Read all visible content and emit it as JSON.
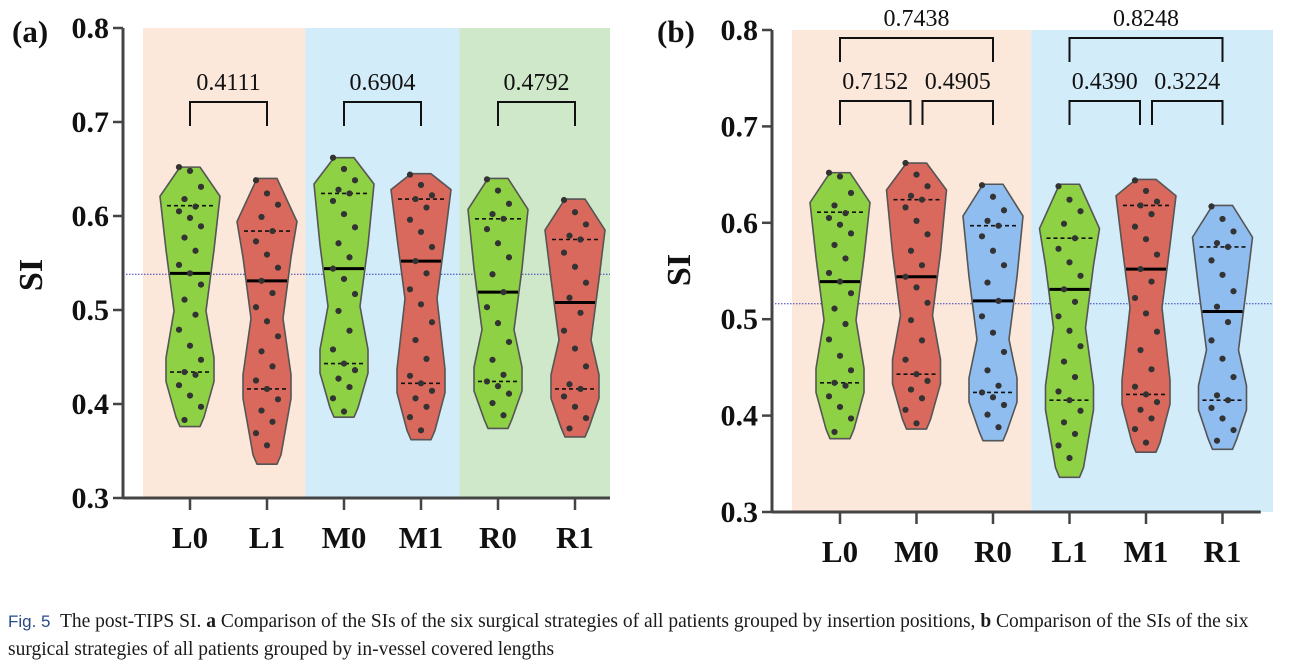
{
  "chart_data": [
    {
      "type": "violin",
      "panel_label": "(a)",
      "ylabel": "SI",
      "ylim": [
        0.3,
        0.8
      ],
      "yticks": [
        0.3,
        0.4,
        0.5,
        0.6,
        0.7,
        0.8
      ],
      "ytick_labels": [
        "0.3",
        "0.4",
        "0.5",
        "0.6",
        "0.7",
        "0.8"
      ],
      "reference_line": 0.538,
      "categories": [
        "L0",
        "L1",
        "M0",
        "M1",
        "R0",
        "R1"
      ],
      "backgrounds": [
        {
          "from": 0,
          "to": 1,
          "color": "#fce8da"
        },
        {
          "from": 2,
          "to": 3,
          "color": "#d2ecfa"
        },
        {
          "from": 4,
          "to": 5,
          "color": "#cfe8c9"
        }
      ],
      "series": [
        {
          "category": "L0",
          "color": "#8ed145",
          "min": 0.376,
          "max": 0.652,
          "median": 0.539,
          "q1": 0.434,
          "q3": 0.611,
          "points": [
            0.652,
            0.648,
            0.631,
            0.618,
            0.61,
            0.605,
            0.598,
            0.589,
            0.577,
            0.563,
            0.548,
            0.539,
            0.527,
            0.511,
            0.495,
            0.479,
            0.462,
            0.447,
            0.434,
            0.431,
            0.42,
            0.409,
            0.397,
            0.383
          ]
        },
        {
          "category": "L1",
          "color": "#d9695c",
          "min": 0.336,
          "max": 0.64,
          "median": 0.531,
          "q1": 0.416,
          "q3": 0.584,
          "points": [
            0.638,
            0.624,
            0.612,
            0.599,
            0.584,
            0.573,
            0.559,
            0.545,
            0.531,
            0.518,
            0.503,
            0.488,
            0.472,
            0.456,
            0.44,
            0.425,
            0.416,
            0.405,
            0.393,
            0.381,
            0.369,
            0.356
          ]
        },
        {
          "category": "M0",
          "color": "#8ed145",
          "min": 0.386,
          "max": 0.662,
          "median": 0.544,
          "q1": 0.443,
          "q3": 0.624,
          "points": [
            0.662,
            0.65,
            0.638,
            0.628,
            0.624,
            0.616,
            0.602,
            0.588,
            0.571,
            0.556,
            0.544,
            0.533,
            0.517,
            0.499,
            0.478,
            0.458,
            0.443,
            0.436,
            0.427,
            0.418,
            0.406,
            0.392
          ]
        },
        {
          "category": "M1",
          "color": "#d9695c",
          "min": 0.362,
          "max": 0.645,
          "median": 0.552,
          "q1": 0.422,
          "q3": 0.618,
          "points": [
            0.644,
            0.633,
            0.622,
            0.618,
            0.609,
            0.596,
            0.583,
            0.567,
            0.552,
            0.539,
            0.522,
            0.506,
            0.487,
            0.468,
            0.448,
            0.43,
            0.422,
            0.414,
            0.406,
            0.397,
            0.386,
            0.372
          ]
        },
        {
          "category": "R0",
          "color": "#8ed145",
          "min": 0.374,
          "max": 0.64,
          "median": 0.519,
          "q1": 0.424,
          "q3": 0.597,
          "points": [
            0.639,
            0.627,
            0.613,
            0.602,
            0.597,
            0.586,
            0.571,
            0.556,
            0.538,
            0.519,
            0.503,
            0.486,
            0.466,
            0.447,
            0.431,
            0.424,
            0.419,
            0.411,
            0.401,
            0.388
          ]
        },
        {
          "category": "R1",
          "color": "#d9695c",
          "min": 0.365,
          "max": 0.618,
          "median": 0.508,
          "q1": 0.416,
          "q3": 0.575,
          "points": [
            0.617,
            0.604,
            0.591,
            0.579,
            0.575,
            0.561,
            0.546,
            0.529,
            0.513,
            0.497,
            0.478,
            0.459,
            0.44,
            0.421,
            0.416,
            0.408,
            0.397,
            0.385,
            0.374
          ]
        }
      ],
      "comparisons": [
        {
          "from": 0,
          "to": 1,
          "level": 0,
          "p": "0.4111"
        },
        {
          "from": 2,
          "to": 3,
          "level": 0,
          "p": "0.6904"
        },
        {
          "from": 4,
          "to": 5,
          "level": 0,
          "p": "0.4792"
        }
      ]
    },
    {
      "type": "violin",
      "panel_label": "(b)",
      "ylabel": "SI",
      "ylim": [
        0.3,
        0.8
      ],
      "yticks": [
        0.3,
        0.4,
        0.5,
        0.6,
        0.7,
        0.8
      ],
      "ytick_labels": [
        "0.3",
        "0.4",
        "0.5",
        "0.6",
        "0.7",
        "0.8"
      ],
      "reference_line": 0.516,
      "categories": [
        "L0",
        "M0",
        "R0",
        "L1",
        "M1",
        "R1"
      ],
      "backgrounds": [
        {
          "from": 0,
          "to": 2,
          "color": "#fce8da"
        },
        {
          "from": 3,
          "to": 5,
          "color": "#d2ecfa"
        }
      ],
      "series": [
        {
          "category": "L0",
          "color": "#8ed145",
          "min": 0.376,
          "max": 0.652,
          "median": 0.539,
          "q1": 0.434,
          "q3": 0.611,
          "points": [
            0.652,
            0.648,
            0.631,
            0.618,
            0.61,
            0.605,
            0.598,
            0.589,
            0.577,
            0.563,
            0.548,
            0.539,
            0.527,
            0.511,
            0.495,
            0.479,
            0.462,
            0.447,
            0.434,
            0.431,
            0.42,
            0.409,
            0.397,
            0.383
          ]
        },
        {
          "category": "M0",
          "color": "#d9695c",
          "min": 0.386,
          "max": 0.662,
          "median": 0.544,
          "q1": 0.443,
          "q3": 0.624,
          "points": [
            0.662,
            0.65,
            0.638,
            0.628,
            0.624,
            0.616,
            0.602,
            0.588,
            0.571,
            0.556,
            0.544,
            0.533,
            0.517,
            0.499,
            0.478,
            0.458,
            0.443,
            0.436,
            0.427,
            0.418,
            0.406,
            0.392
          ]
        },
        {
          "category": "R0",
          "color": "#8fbdf0",
          "min": 0.374,
          "max": 0.64,
          "median": 0.519,
          "q1": 0.424,
          "q3": 0.597,
          "points": [
            0.639,
            0.627,
            0.613,
            0.602,
            0.597,
            0.586,
            0.571,
            0.556,
            0.538,
            0.519,
            0.503,
            0.486,
            0.466,
            0.447,
            0.431,
            0.424,
            0.419,
            0.411,
            0.401,
            0.388
          ]
        },
        {
          "category": "L1",
          "color": "#8ed145",
          "min": 0.336,
          "max": 0.64,
          "median": 0.531,
          "q1": 0.416,
          "q3": 0.584,
          "points": [
            0.638,
            0.624,
            0.612,
            0.599,
            0.584,
            0.573,
            0.559,
            0.545,
            0.531,
            0.518,
            0.503,
            0.488,
            0.472,
            0.456,
            0.44,
            0.425,
            0.416,
            0.405,
            0.393,
            0.381,
            0.369,
            0.356
          ]
        },
        {
          "category": "M1",
          "color": "#d9695c",
          "min": 0.362,
          "max": 0.645,
          "median": 0.552,
          "q1": 0.422,
          "q3": 0.618,
          "points": [
            0.644,
            0.633,
            0.622,
            0.618,
            0.609,
            0.596,
            0.583,
            0.567,
            0.552,
            0.539,
            0.522,
            0.506,
            0.487,
            0.468,
            0.448,
            0.43,
            0.422,
            0.414,
            0.406,
            0.397,
            0.386,
            0.372
          ]
        },
        {
          "category": "R1",
          "color": "#8fbdf0",
          "min": 0.365,
          "max": 0.618,
          "median": 0.508,
          "q1": 0.416,
          "q3": 0.575,
          "points": [
            0.617,
            0.604,
            0.591,
            0.579,
            0.575,
            0.561,
            0.546,
            0.529,
            0.513,
            0.497,
            0.478,
            0.459,
            0.44,
            0.421,
            0.416,
            0.408,
            0.397,
            0.385,
            0.374
          ]
        }
      ],
      "comparisons": [
        {
          "from": 0,
          "to": 1,
          "level": 0,
          "p": "0.7152"
        },
        {
          "from": 1,
          "to": 2,
          "level": 0,
          "p": "0.4905"
        },
        {
          "from": 0,
          "to": 2,
          "level": 1,
          "p": "0.7438"
        },
        {
          "from": 3,
          "to": 4,
          "level": 0,
          "p": "0.4390"
        },
        {
          "from": 4,
          "to": 5,
          "level": 0,
          "p": "0.3224"
        },
        {
          "from": 3,
          "to": 5,
          "level": 1,
          "p": "0.8248"
        }
      ]
    }
  ],
  "caption": {
    "label": "Fig. 5",
    "intro": "The post-TIPS SI.",
    "part_a_letter": "a",
    "part_a_text": "Comparison of the SIs of the six surgical strategies of all patients grouped by insertion positions,",
    "part_b_letter": "b",
    "part_b_text": "Comparison of the SIs of the six surgical strategies of all patients grouped by in-vessel covered lengths"
  }
}
